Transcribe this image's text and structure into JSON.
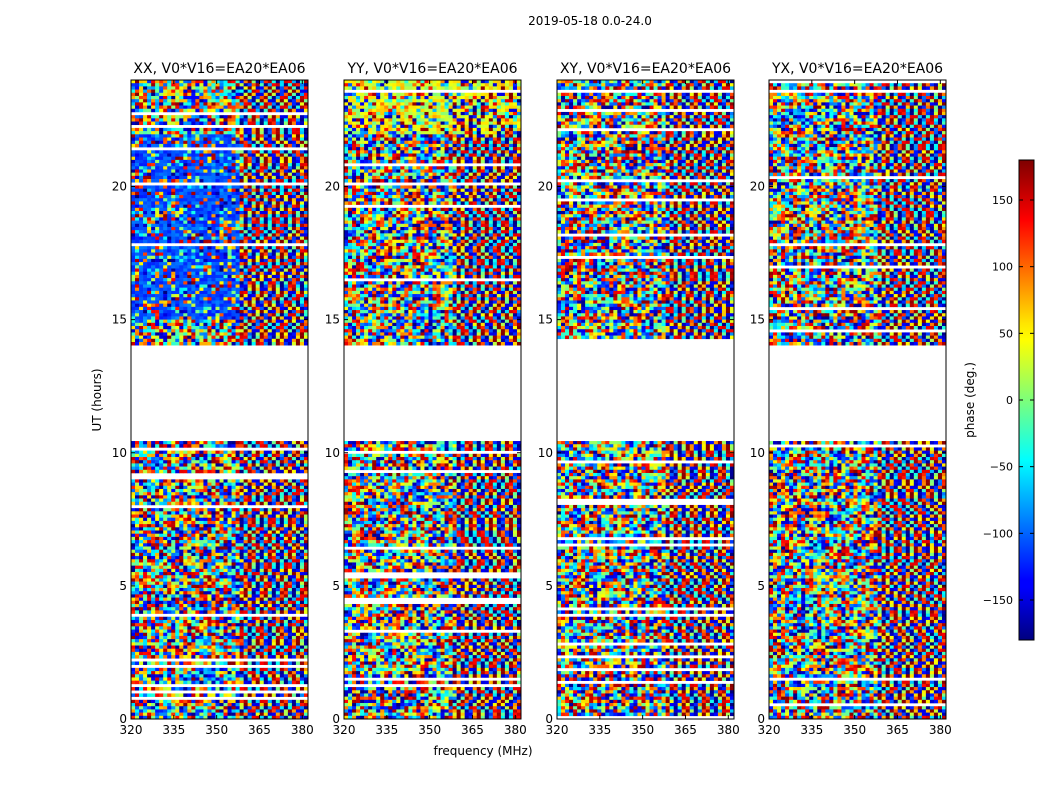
{
  "figure": {
    "suptitle": "2019-05-18 0.0-24.0"
  },
  "chart_data": {
    "type": "heatmap",
    "xlabel": "frequency (MHz)",
    "ylabel": "UT (hours)",
    "xlim": [
      320,
      382
    ],
    "ylim": [
      0,
      24
    ],
    "xticks": [
      320,
      335,
      350,
      365,
      380
    ],
    "yticks": [
      0,
      5,
      10,
      15,
      20
    ],
    "panels": [
      {
        "title": "XX, V0*V16=EA20*EA06"
      },
      {
        "title": "YY, V0*V16=EA20*EA06"
      },
      {
        "title": "XY, V0*V16=EA20*EA06"
      },
      {
        "title": "YX, V0*V16=EA20*EA06"
      }
    ],
    "data_gaps_hours": [
      [
        10.5,
        14.1
      ]
    ],
    "colorbar": {
      "label": "phase (deg.)",
      "range": [
        -180,
        180
      ],
      "ticks": [
        150,
        100,
        50,
        0,
        -50,
        -100,
        -150
      ],
      "colormap": "jet"
    }
  }
}
